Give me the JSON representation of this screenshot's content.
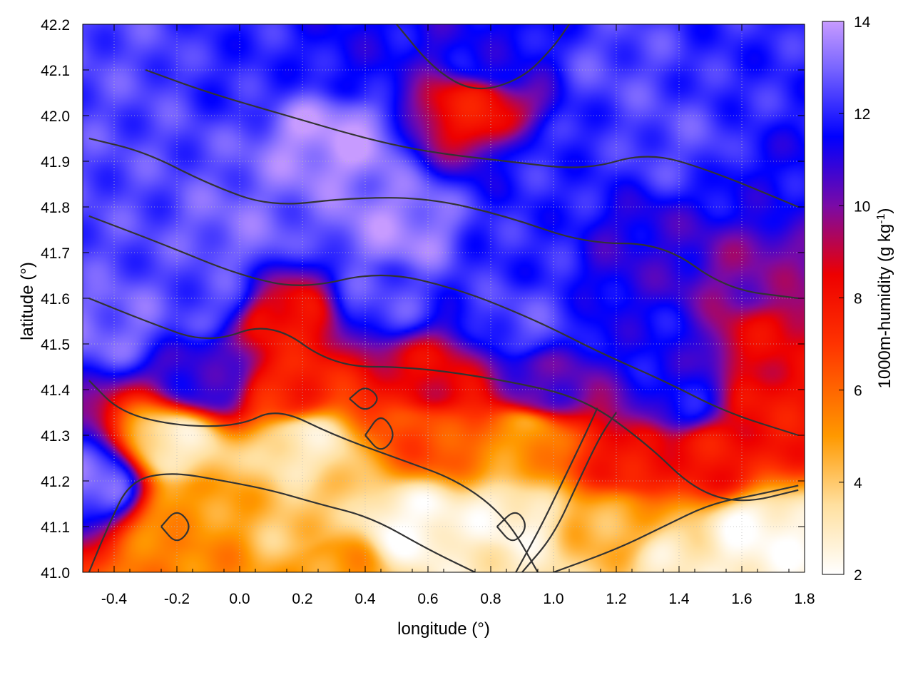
{
  "chart_data": {
    "type": "heatmap",
    "title": "",
    "xlabel": "longitude (°)",
    "ylabel": "latitude (°)",
    "colorbar_label": "1000m-humidity (g kg-1)",
    "colorbar_label_parts": {
      "main": "1000m-humidity (g kg",
      "sup": "-1",
      "close": ")"
    },
    "xlim": [
      -0.5,
      1.8
    ],
    "ylim": [
      41.0,
      42.2
    ],
    "zlim": [
      2,
      14
    ],
    "x_ticks": [
      -0.4,
      -0.2,
      0.0,
      0.2,
      0.4,
      0.6,
      0.8,
      1.0,
      1.2,
      1.4,
      1.6,
      1.8
    ],
    "x_tick_labels": [
      "-0.4",
      "-0.2",
      "0.0",
      "0.2",
      "0.4",
      "0.6",
      "0.8",
      "1.0",
      "1.2",
      "1.4",
      "1.6",
      "1.8"
    ],
    "y_ticks": [
      41.0,
      41.1,
      41.2,
      41.3,
      41.4,
      41.5,
      41.6,
      41.7,
      41.8,
      41.9,
      42.0,
      42.1,
      42.2
    ],
    "y_tick_labels": [
      "41.0",
      "41.1",
      "41.2",
      "41.3",
      "41.4",
      "41.5",
      "41.6",
      "41.7",
      "41.8",
      "41.9",
      "42.0",
      "42.1",
      "42.2"
    ],
    "colorbar_ticks": [
      2,
      4,
      6,
      8,
      10,
      12,
      14
    ],
    "colorbar_tick_labels": [
      "2",
      "4",
      "6",
      "8",
      "10",
      "12",
      "14"
    ],
    "colormap": [
      {
        "value": 2,
        "color": "#ffffff"
      },
      {
        "value": 3.5,
        "color": "#ffe0a0"
      },
      {
        "value": 5,
        "color": "#ff9900"
      },
      {
        "value": 7,
        "color": "#ff3300"
      },
      {
        "value": 8.5,
        "color": "#ee0000"
      },
      {
        "value": 10,
        "color": "#7a0aa6"
      },
      {
        "value": 11.5,
        "color": "#0000ff"
      },
      {
        "value": 13,
        "color": "#7a66ff"
      },
      {
        "value": 14,
        "color": "#c79bff"
      }
    ],
    "field_points": [
      {
        "x": -0.35,
        "y": 42.1,
        "z": 12.5
      },
      {
        "x": 0.0,
        "y": 42.1,
        "z": 12.0
      },
      {
        "x": 0.4,
        "y": 42.12,
        "z": 11.5
      },
      {
        "x": 0.8,
        "y": 42.12,
        "z": 11.5
      },
      {
        "x": 1.2,
        "y": 42.1,
        "z": 12.5
      },
      {
        "x": 1.6,
        "y": 42.1,
        "z": 12.0
      },
      {
        "x": -0.3,
        "y": 41.9,
        "z": 12.5
      },
      {
        "x": 0.3,
        "y": 41.95,
        "z": 13.8
      },
      {
        "x": 0.75,
        "y": 42.02,
        "z": 8.0
      },
      {
        "x": 1.0,
        "y": 41.9,
        "z": 12.0
      },
      {
        "x": 1.4,
        "y": 41.95,
        "z": 12.5
      },
      {
        "x": 1.7,
        "y": 41.85,
        "z": 11.5
      },
      {
        "x": 0.0,
        "y": 41.75,
        "z": 13.0
      },
      {
        "x": 0.5,
        "y": 41.75,
        "z": 13.5
      },
      {
        "x": 0.9,
        "y": 41.72,
        "z": 12.0
      },
      {
        "x": 1.3,
        "y": 41.7,
        "z": 11.0
      },
      {
        "x": 1.65,
        "y": 41.65,
        "z": 10.0
      },
      {
        "x": -0.4,
        "y": 41.55,
        "z": 13.0
      },
      {
        "x": -0.1,
        "y": 41.6,
        "z": 12.5
      },
      {
        "x": 0.15,
        "y": 41.55,
        "z": 8.0
      },
      {
        "x": 0.45,
        "y": 41.6,
        "z": 12.5
      },
      {
        "x": 0.9,
        "y": 41.55,
        "z": 12.5
      },
      {
        "x": 1.3,
        "y": 41.5,
        "z": 11.5
      },
      {
        "x": 1.7,
        "y": 41.5,
        "z": 8.5
      },
      {
        "x": -0.1,
        "y": 41.42,
        "z": 11.0
      },
      {
        "x": 0.15,
        "y": 41.4,
        "z": 7.5
      },
      {
        "x": 0.6,
        "y": 41.42,
        "z": 8.5
      },
      {
        "x": 0.95,
        "y": 41.4,
        "z": 10.5
      },
      {
        "x": 1.4,
        "y": 41.38,
        "z": 11.5
      },
      {
        "x": 1.7,
        "y": 41.35,
        "z": 8.0
      },
      {
        "x": -0.2,
        "y": 41.28,
        "z": 3.0
      },
      {
        "x": 0.2,
        "y": 41.28,
        "z": 3.0
      },
      {
        "x": 0.6,
        "y": 41.3,
        "z": 6.5
      },
      {
        "x": 0.9,
        "y": 41.3,
        "z": 5.0
      },
      {
        "x": 1.25,
        "y": 41.25,
        "z": 8.0
      },
      {
        "x": 1.5,
        "y": 41.25,
        "z": 8.0
      },
      {
        "x": -0.15,
        "y": 41.12,
        "z": 5.0
      },
      {
        "x": 0.2,
        "y": 41.1,
        "z": 4.0
      },
      {
        "x": 0.55,
        "y": 41.1,
        "z": 2.2
      },
      {
        "x": 0.85,
        "y": 41.1,
        "z": 2.5
      },
      {
        "x": 1.2,
        "y": 41.1,
        "z": 4.5
      },
      {
        "x": 1.65,
        "y": 41.08,
        "z": 2.2
      },
      {
        "x": -0.2,
        "y": 41.02,
        "z": 5.5
      },
      {
        "x": 0.3,
        "y": 41.02,
        "z": 5.0
      },
      {
        "x": 0.8,
        "y": 41.02,
        "z": 3.0
      },
      {
        "x": 1.4,
        "y": 41.02,
        "z": 3.0
      },
      {
        "x": -0.47,
        "y": 41.2,
        "z": 13.0
      },
      {
        "x": -0.47,
        "y": 41.7,
        "z": 12.5
      }
    ],
    "contour_lines": [
      [
        [
          -0.48,
          41.0
        ],
        [
          -0.42,
          41.1
        ],
        [
          -0.35,
          41.2
        ],
        [
          -0.22,
          41.22
        ],
        [
          -0.05,
          41.2
        ],
        [
          0.1,
          41.18
        ],
        [
          0.25,
          41.15
        ],
        [
          0.42,
          41.12
        ],
        [
          0.6,
          41.05
        ],
        [
          0.75,
          41.0
        ]
      ],
      [
        [
          -0.48,
          41.42
        ],
        [
          -0.38,
          41.35
        ],
        [
          -0.2,
          41.32
        ],
        [
          0.0,
          41.32
        ],
        [
          0.12,
          41.36
        ],
        [
          0.3,
          41.3
        ],
        [
          0.5,
          41.25
        ],
        [
          0.7,
          41.2
        ],
        [
          0.85,
          41.12
        ],
        [
          0.95,
          41.0
        ]
      ],
      [
        [
          -0.48,
          41.6
        ],
        [
          -0.3,
          41.55
        ],
        [
          -0.1,
          41.5
        ],
        [
          0.1,
          41.55
        ],
        [
          0.3,
          41.45
        ],
        [
          0.55,
          41.45
        ],
        [
          0.85,
          41.42
        ],
        [
          1.1,
          41.38
        ],
        [
          1.3,
          41.28
        ],
        [
          1.45,
          41.18
        ],
        [
          1.6,
          41.15
        ],
        [
          1.78,
          41.18
        ]
      ],
      [
        [
          -0.48,
          41.78
        ],
        [
          -0.25,
          41.72
        ],
        [
          0.0,
          41.65
        ],
        [
          0.2,
          41.62
        ],
        [
          0.45,
          41.66
        ],
        [
          0.7,
          41.62
        ],
        [
          0.95,
          41.55
        ],
        [
          1.15,
          41.48
        ],
        [
          1.35,
          41.42
        ],
        [
          1.55,
          41.35
        ],
        [
          1.78,
          41.3
        ]
      ],
      [
        [
          -0.48,
          41.95
        ],
        [
          -0.3,
          41.92
        ],
        [
          -0.1,
          41.85
        ],
        [
          0.1,
          41.8
        ],
        [
          0.35,
          41.82
        ],
        [
          0.6,
          41.82
        ],
        [
          0.85,
          41.78
        ],
        [
          1.1,
          41.72
        ],
        [
          1.35,
          41.72
        ],
        [
          1.55,
          41.62
        ],
        [
          1.78,
          41.6
        ]
      ],
      [
        [
          -0.3,
          42.1
        ],
        [
          -0.1,
          42.05
        ],
        [
          0.15,
          42.0
        ],
        [
          0.4,
          41.95
        ],
        [
          0.6,
          41.92
        ],
        [
          0.85,
          41.9
        ],
        [
          1.1,
          41.88
        ],
        [
          1.3,
          41.92
        ],
        [
          1.5,
          41.88
        ],
        [
          1.78,
          41.8
        ]
      ],
      [
        [
          0.5,
          42.2
        ],
        [
          0.62,
          42.1
        ],
        [
          0.75,
          42.05
        ],
        [
          0.9,
          42.08
        ],
        [
          1.0,
          42.15
        ],
        [
          1.05,
          42.2
        ]
      ],
      [
        [
          0.9,
          41.0
        ],
        [
          1.0,
          41.08
        ],
        [
          1.08,
          41.2
        ],
        [
          1.15,
          41.3
        ],
        [
          1.2,
          41.35
        ]
      ],
      [
        [
          0.88,
          41.0
        ],
        [
          0.96,
          41.1
        ],
        [
          1.03,
          41.2
        ],
        [
          1.1,
          41.3
        ],
        [
          1.14,
          41.36
        ]
      ],
      [
        [
          1.0,
          41.0
        ],
        [
          1.2,
          41.05
        ],
        [
          1.35,
          41.1
        ],
        [
          1.5,
          41.15
        ],
        [
          1.65,
          41.17
        ],
        [
          1.78,
          41.19
        ]
      ],
      [
        [
          0.4,
          41.3
        ],
        [
          0.45,
          41.35
        ],
        [
          0.5,
          41.3
        ],
        [
          0.45,
          41.26
        ],
        [
          0.4,
          41.3
        ]
      ],
      [
        [
          0.35,
          41.38
        ],
        [
          0.4,
          41.41
        ],
        [
          0.45,
          41.38
        ],
        [
          0.4,
          41.35
        ],
        [
          0.35,
          41.38
        ]
      ],
      [
        [
          -0.25,
          41.1
        ],
        [
          -0.2,
          41.14
        ],
        [
          -0.15,
          41.1
        ],
        [
          -0.2,
          41.06
        ],
        [
          -0.25,
          41.1
        ]
      ],
      [
        [
          0.82,
          41.1
        ],
        [
          0.88,
          41.14
        ],
        [
          0.92,
          41.1
        ],
        [
          0.87,
          41.06
        ],
        [
          0.82,
          41.1
        ]
      ]
    ]
  }
}
